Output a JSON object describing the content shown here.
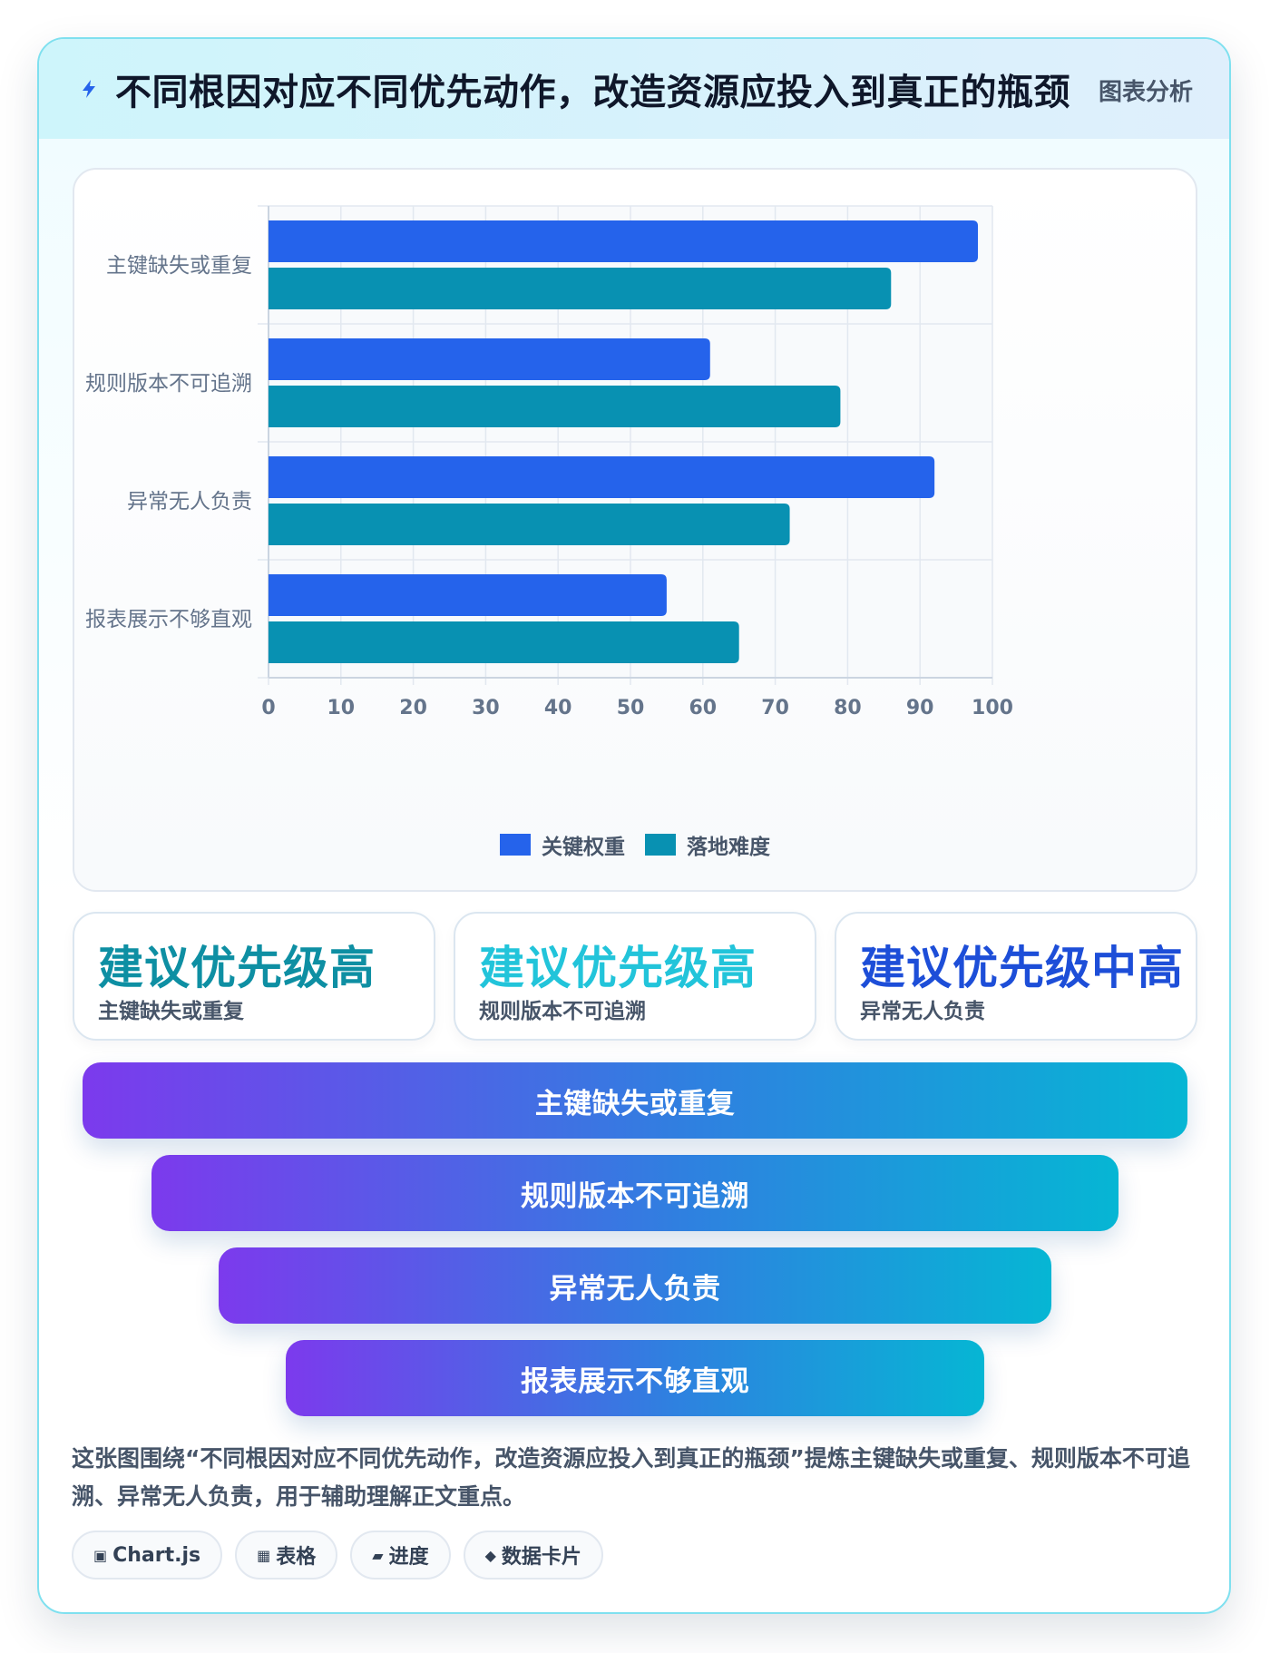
{
  "header": {
    "title": "不同根因对应不同优先动作，改造资源应投入到真正的瓶颈",
    "tag": "图表分析"
  },
  "chart_data": {
    "type": "bar",
    "orientation": "horizontal",
    "categories": [
      "主键缺失或重复",
      "规则版本不可追溯",
      "异常无人负责",
      "报表展示不够直观"
    ],
    "series": [
      {
        "name": "关键权重",
        "values": [
          98,
          61,
          92,
          55
        ],
        "color": "#2563eb"
      },
      {
        "name": "落地难度",
        "values": [
          86,
          79,
          72,
          65
        ],
        "color": "#0891b2"
      }
    ],
    "xlim": [
      0,
      100
    ],
    "xticks": [
      0,
      10,
      20,
      30,
      40,
      50,
      60,
      70,
      80,
      90,
      100
    ],
    "grid": true,
    "legend_position": "bottom"
  },
  "priorities": [
    {
      "title": "建议优先级高",
      "subtitle": "主键缺失或重复",
      "color": "#0e8fa3"
    },
    {
      "title": "建议优先级高",
      "subtitle": "规则版本不可追溯",
      "color": "#22c4da"
    },
    {
      "title": "建议优先级中高",
      "subtitle": "异常无人负责",
      "color": "#1d4ed8"
    }
  ],
  "funnel": [
    "主键缺失或重复",
    "规则版本不可追溯",
    "异常无人负责",
    "报表展示不够直观"
  ],
  "summary": "这张图围绕“不同根因对应不同优先动作，改造资源应投入到真正的瓶颈”提炼主键缺失或重复、规则版本不可追溯、异常无人负责，用于辅助理解正文重点。",
  "chips": [
    {
      "icon": "▣",
      "icon_name": "chart-icon",
      "label": "Chart.js"
    },
    {
      "icon": "▦",
      "icon_name": "table-icon",
      "label": "表格"
    },
    {
      "icon": "▰",
      "icon_name": "progress-icon",
      "label": "进度"
    },
    {
      "icon": "◆",
      "icon_name": "card-icon",
      "label": "数据卡片"
    }
  ]
}
